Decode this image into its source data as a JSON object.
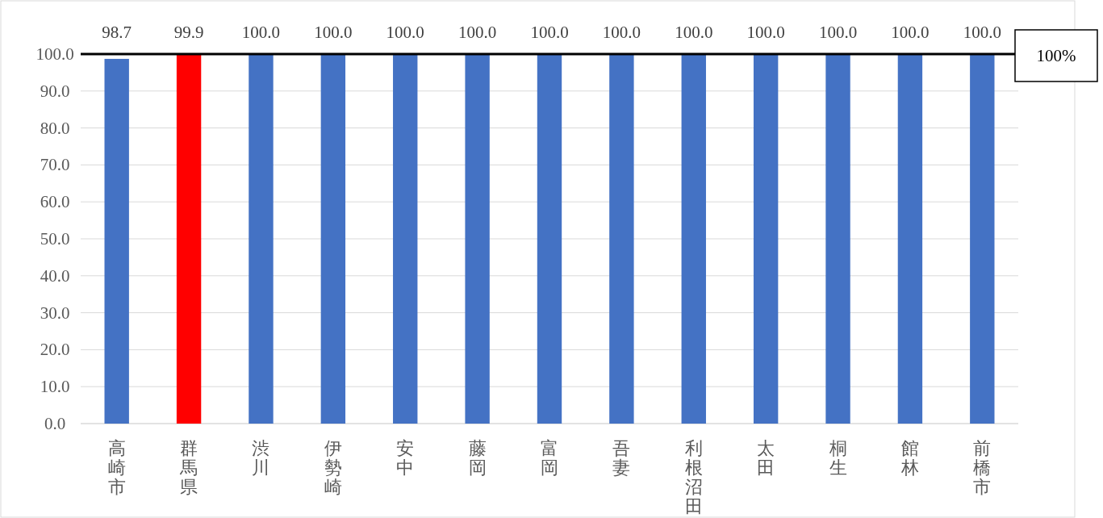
{
  "chart_data": {
    "type": "bar",
    "categories": [
      "高崎市",
      "群馬県",
      "渋川",
      "伊勢崎",
      "安中",
      "藤岡",
      "富岡",
      "吾妻",
      "利根沼田",
      "太田",
      "桐生",
      "館林",
      "前橋市"
    ],
    "values": [
      98.7,
      99.9,
      100.0,
      100.0,
      100.0,
      100.0,
      100.0,
      100.0,
      100.0,
      100.0,
      100.0,
      100.0,
      100.0
    ],
    "colors": [
      "#4472c4",
      "#ff0000",
      "#4472c4",
      "#4472c4",
      "#4472c4",
      "#4472c4",
      "#4472c4",
      "#4472c4",
      "#4472c4",
      "#4472c4",
      "#4472c4",
      "#4472c4",
      "#4472c4"
    ],
    "value_labels": [
      "98.7",
      "99.9",
      "100.0",
      "100.0",
      "100.0",
      "100.0",
      "100.0",
      "100.0",
      "100.0",
      "100.0",
      "100.0",
      "100.0",
      "100.0"
    ],
    "ylim": [
      0,
      100
    ],
    "yticks": [
      {
        "value": 0,
        "label": "0.0"
      },
      {
        "value": 10,
        "label": "10.0"
      },
      {
        "value": 20,
        "label": "20.0"
      },
      {
        "value": 30,
        "label": "30.0"
      },
      {
        "value": 40,
        "label": "40.0"
      },
      {
        "value": 50,
        "label": "50.0"
      },
      {
        "value": 60,
        "label": "60.0"
      },
      {
        "value": 70,
        "label": "70.0"
      },
      {
        "value": 80,
        "label": "80.0"
      },
      {
        "value": 90,
        "label": "90.0"
      },
      {
        "value": 100,
        "label": "100.0"
      }
    ],
    "grid": "y",
    "ref_lines": [
      {
        "axis": "y",
        "value": 100,
        "label": "100%",
        "color": "#000000"
      }
    ]
  }
}
